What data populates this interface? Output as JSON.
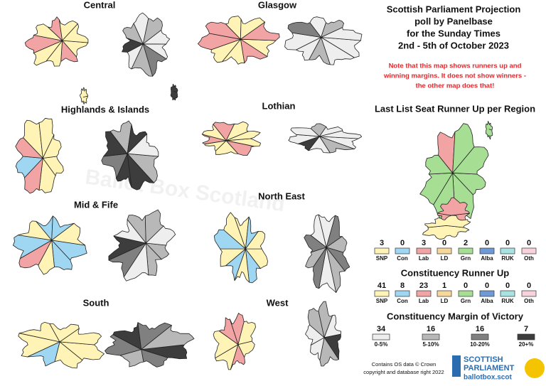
{
  "header": {
    "lines": [
      "Scottish Parliament Projection",
      "poll by Panelbase",
      "for the Sunday Times",
      "2nd - 5th of October 2023"
    ]
  },
  "note": [
    "Note that this map shows runners up and",
    "winning margins. It does not show winners -",
    "the other map does that!"
  ],
  "regions": [
    "Central",
    "Glasgow",
    "Highlands & Islands",
    "Lothian",
    "Mid & Fife",
    "North East",
    "South",
    "West"
  ],
  "list_runner_up": {
    "title": "Last List Seat Runner Up per Region",
    "items": [
      {
        "party": "SNP",
        "count": 3,
        "color": "#fff4b5"
      },
      {
        "party": "Con",
        "count": 0,
        "color": "#9fd6f2"
      },
      {
        "party": "Lab",
        "count": 3,
        "color": "#f2a3a3"
      },
      {
        "party": "LD",
        "count": 0,
        "color": "#f8d79a"
      },
      {
        "party": "Grn",
        "count": 2,
        "color": "#a6df94"
      },
      {
        "party": "Alba",
        "count": 0,
        "color": "#6f9ad8"
      },
      {
        "party": "RUK",
        "count": 0,
        "color": "#a8e3e3"
      },
      {
        "party": "Oth",
        "count": 0,
        "color": "#f8d2da"
      }
    ]
  },
  "constituency_runner_up": {
    "title": "Constituency Runner Up",
    "items": [
      {
        "party": "SNP",
        "count": 41,
        "color": "#fff4b5"
      },
      {
        "party": "Con",
        "count": 8,
        "color": "#9fd6f2"
      },
      {
        "party": "Lab",
        "count": 23,
        "color": "#f2a3a3"
      },
      {
        "party": "LD",
        "count": 1,
        "color": "#f8d79a"
      },
      {
        "party": "Grn",
        "count": 0,
        "color": "#a6df94"
      },
      {
        "party": "Alba",
        "count": 0,
        "color": "#6f9ad8"
      },
      {
        "party": "RUK",
        "count": 0,
        "color": "#a8e3e3"
      },
      {
        "party": "Oth",
        "count": 0,
        "color": "#f8d2da"
      }
    ]
  },
  "margin": {
    "title": "Constituency Margin of Victory",
    "items": [
      {
        "range": "0-5%",
        "count": 34,
        "color": "#eeeeee"
      },
      {
        "range": "5-10%",
        "count": 16,
        "color": "#b8b8b8"
      },
      {
        "range": "10-20%",
        "count": 16,
        "color": "#808080"
      },
      {
        "range": "20+%",
        "count": 7,
        "color": "#3d3d3d"
      }
    ]
  },
  "credit": [
    "Contains OS data © Crown",
    "copyright and database right 2022"
  ],
  "logo": {
    "line1": "SCOTTISH",
    "line2": "PARLIAMENT",
    "site": "ballotbox.scot"
  },
  "watermark": "Ballot Box Scotland"
}
